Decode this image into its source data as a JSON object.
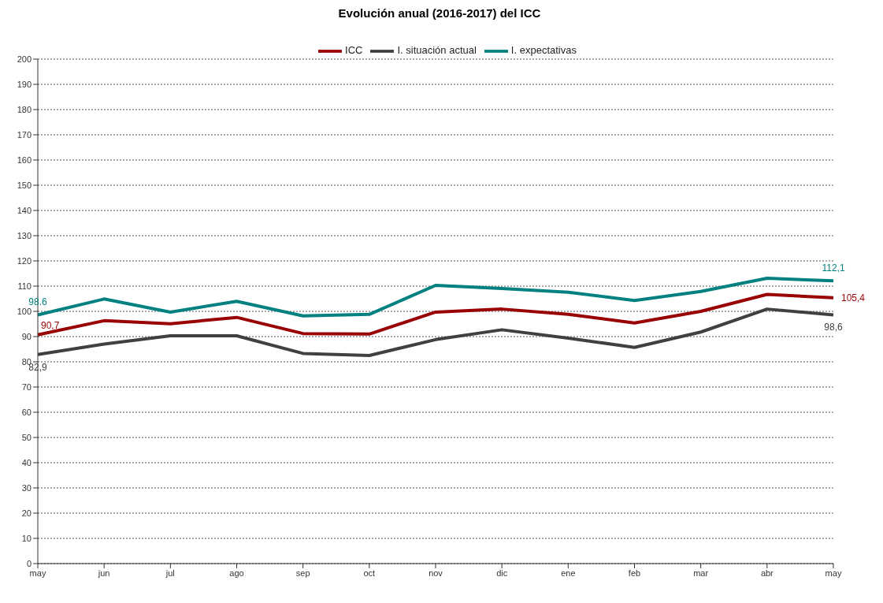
{
  "chart_data": {
    "type": "line",
    "title": "Evolución anual (2016-2017) del ICC",
    "categories": [
      "may",
      "jun",
      "jul",
      "ago",
      "sep",
      "oct",
      "nov",
      "dic",
      "ene",
      "feb",
      "mar",
      "abr",
      "may"
    ],
    "series": [
      {
        "name": "ICC",
        "color": "#990000",
        "values": [
          90.7,
          96.3,
          95.1,
          97.6,
          91.2,
          91.0,
          99.7,
          100.9,
          98.8,
          95.4,
          100.0,
          106.7,
          105.4
        ],
        "value_labels": [
          "90,7",
          null,
          null,
          null,
          null,
          null,
          null,
          null,
          null,
          null,
          null,
          null,
          "105,4"
        ]
      },
      {
        "name": "I. situación actual",
        "color": "#404040",
        "values": [
          82.9,
          87.0,
          90.3,
          90.3,
          83.3,
          82.5,
          88.8,
          92.7,
          89.4,
          85.7,
          91.8,
          100.9,
          98.6
        ],
        "value_labels": [
          "82,9",
          null,
          null,
          null,
          null,
          null,
          null,
          null,
          null,
          null,
          null,
          null,
          "98,6"
        ]
      },
      {
        "name": "I. expectativas",
        "color": "#008080",
        "values": [
          98.6,
          104.9,
          99.7,
          104.0,
          98.2,
          98.8,
          110.3,
          109.1,
          107.6,
          104.3,
          107.9,
          113.1,
          112.1
        ],
        "value_labels": [
          "98.6",
          null,
          null,
          null,
          null,
          null,
          null,
          null,
          null,
          null,
          null,
          null,
          "112,1"
        ]
      }
    ],
    "ylim": [
      0,
      200
    ],
    "yticks": [
      0,
      10,
      20,
      30,
      40,
      50,
      60,
      70,
      80,
      90,
      100,
      110,
      120,
      130,
      140,
      150,
      160,
      170,
      180,
      190,
      200
    ],
    "grid": "y",
    "legend": "top",
    "marker": "none",
    "line_style": "solid"
  }
}
